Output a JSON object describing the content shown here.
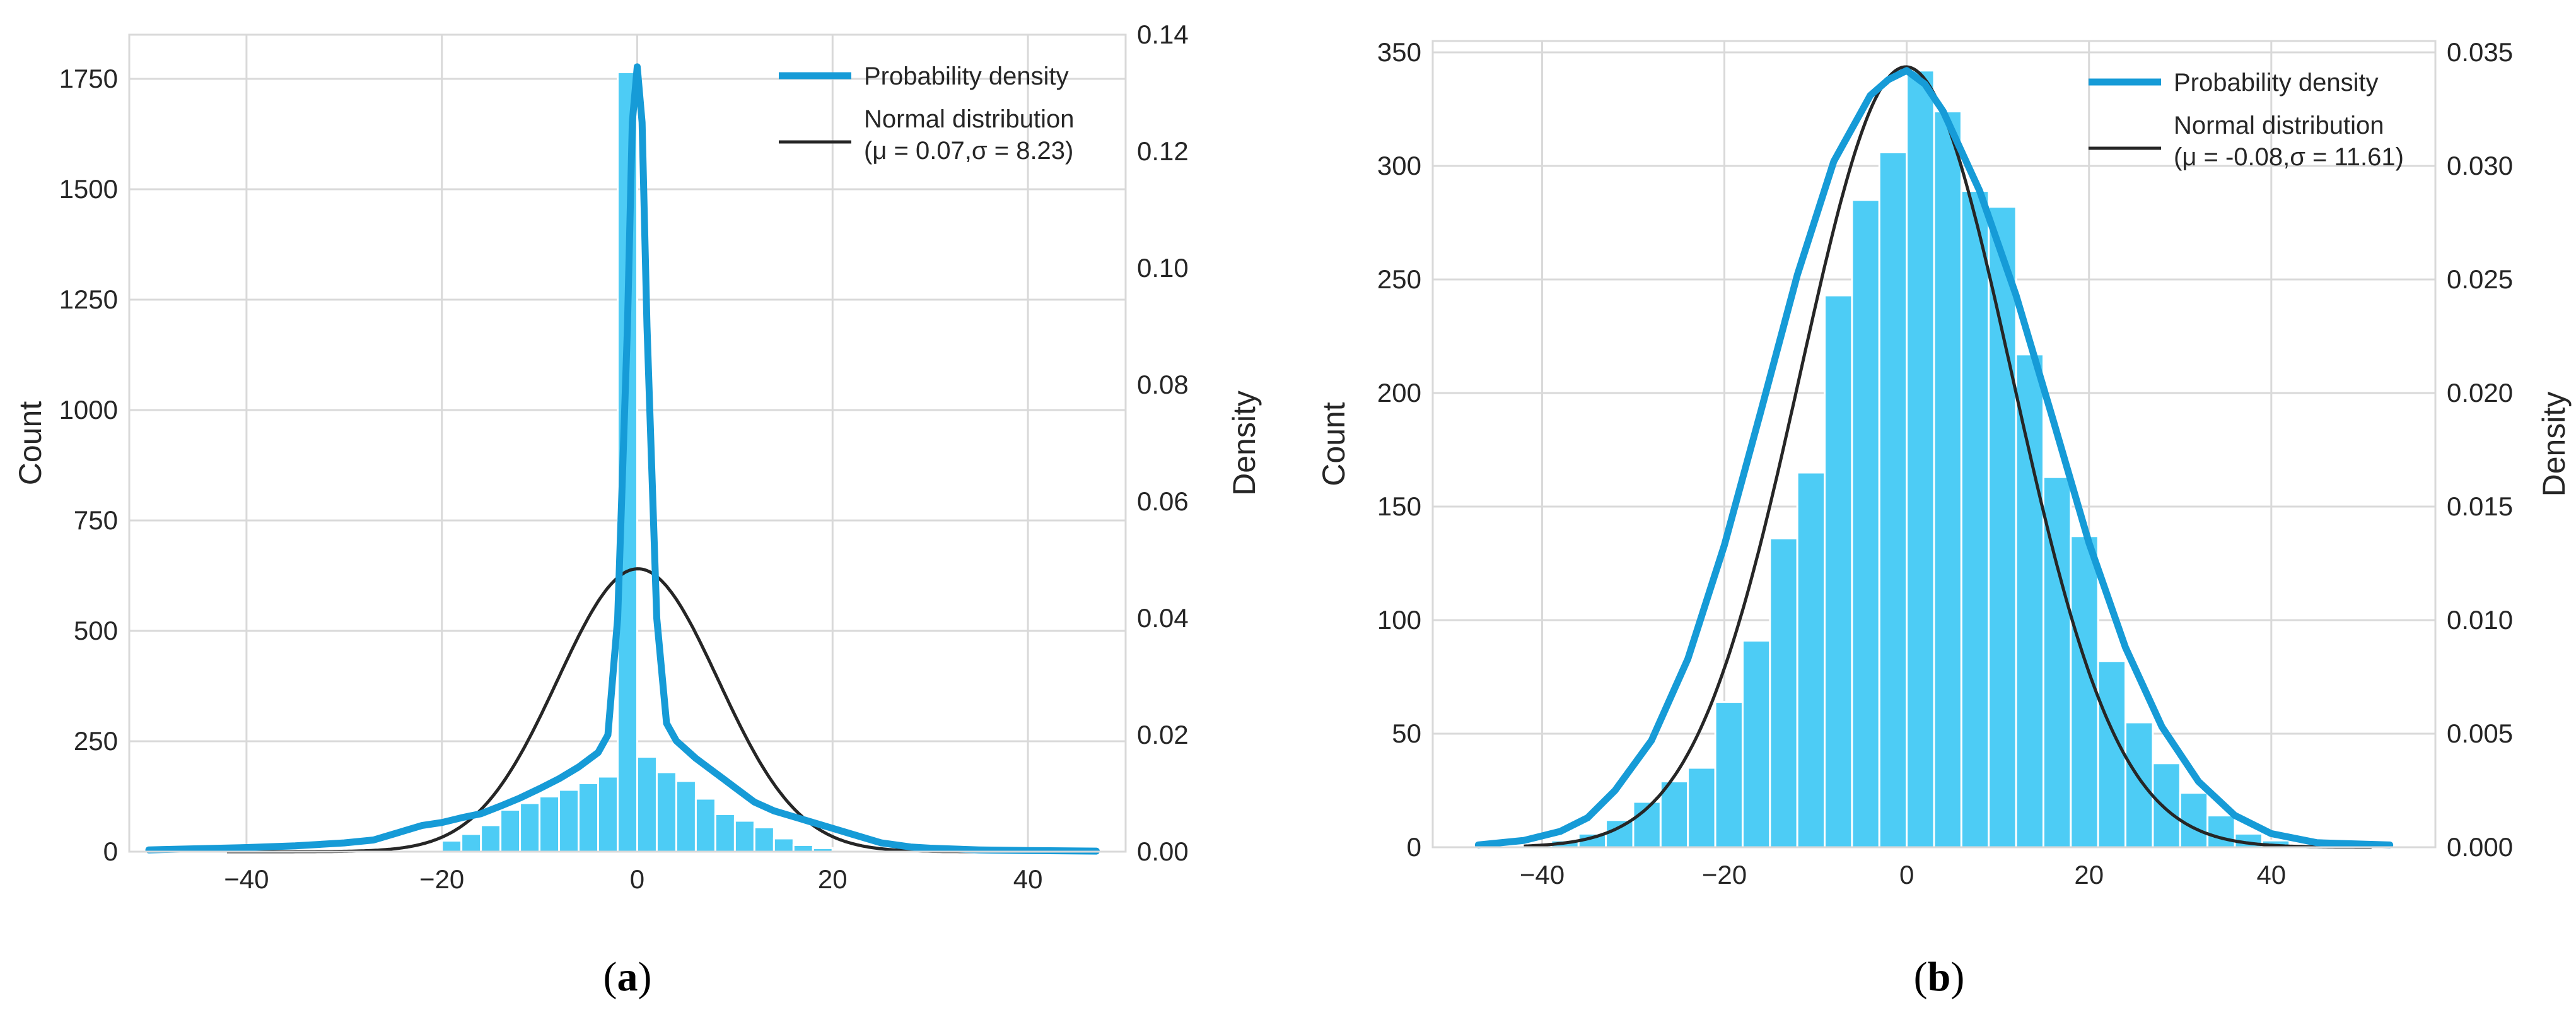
{
  "chart_data": [
    {
      "type": "bar",
      "panel_label": "a",
      "xlabel": "",
      "ylabel_left": "Count",
      "ylabel_right": "Density",
      "xlim": [
        -52,
        50
      ],
      "ylim_count": [
        0,
        1850
      ],
      "ylim_density": [
        0,
        0.14
      ],
      "x_ticks": [
        -40,
        -20,
        0,
        20,
        40
      ],
      "y_count_ticks": [
        0,
        250,
        500,
        750,
        1000,
        1250,
        1500,
        1750
      ],
      "y_density_ticks": [
        0,
        0.02,
        0.04,
        0.06,
        0.08,
        0.1,
        0.12,
        0.14
      ],
      "y_density_tick_labels": [
        "0.00",
        "0.02",
        "0.04",
        "0.06",
        "0.08",
        "0.10",
        "0.12",
        "0.14"
      ],
      "grid": true,
      "legend_position": "top-right",
      "legend": [
        "Probability density",
        "Normal distribution",
        "(μ = 0.07,σ = 8.23)"
      ],
      "histogram": {
        "bin_left": [
          -20,
          -18,
          -16,
          -14,
          -12,
          -10,
          -8,
          -6,
          -4,
          -2,
          0,
          2,
          4,
          6,
          8,
          10,
          12,
          14,
          16,
          18,
          20
        ],
        "bin_width": 2,
        "counts": [
          25,
          40,
          60,
          95,
          110,
          125,
          140,
          155,
          170,
          1765,
          215,
          180,
          160,
          120,
          85,
          70,
          55,
          30,
          15,
          8,
          4
        ]
      },
      "series": [
        {
          "name": "Probability density",
          "x": [
            -50,
            -40,
            -35,
            -30,
            -27,
            -25,
            -22,
            -20,
            -18,
            -16,
            -14,
            -12,
            -10,
            -8,
            -6,
            -4,
            -3,
            -2,
            -1,
            -0.5,
            0,
            0.5,
            1,
            2,
            3,
            4,
            6,
            8,
            10,
            12,
            14,
            16,
            18,
            20,
            22,
            25,
            28,
            30,
            35,
            40,
            47
          ],
          "y": [
            0.0003,
            0.0007,
            0.001,
            0.0015,
            0.002,
            0.003,
            0.0045,
            0.005,
            0.0058,
            0.0065,
            0.0078,
            0.0092,
            0.0108,
            0.0125,
            0.0145,
            0.017,
            0.02,
            0.04,
            0.09,
            0.125,
            0.1345,
            0.125,
            0.09,
            0.04,
            0.022,
            0.019,
            0.016,
            0.0135,
            0.011,
            0.0085,
            0.007,
            0.006,
            0.005,
            0.004,
            0.003,
            0.0015,
            0.0008,
            0.0006,
            0.0003,
            0.0002,
            0.0001
          ]
        },
        {
          "name": "Normal distribution",
          "mu": 0.07,
          "sigma": 8.23
        }
      ]
    },
    {
      "type": "bar",
      "panel_label": "b",
      "xlabel": "",
      "ylabel_left": "Count",
      "ylabel_right": "Density",
      "xlim": [
        -52,
        58
      ],
      "ylim_count": [
        0,
        355
      ],
      "ylim_density": [
        0,
        0.0355
      ],
      "x_ticks": [
        -40,
        -20,
        0,
        20,
        40
      ],
      "y_count_ticks": [
        0,
        50,
        100,
        150,
        200,
        250,
        300,
        350
      ],
      "y_density_ticks": [
        0,
        0.005,
        0.01,
        0.015,
        0.02,
        0.025,
        0.03,
        0.035
      ],
      "y_density_tick_labels": [
        "0.000",
        "0.005",
        "0.010",
        "0.015",
        "0.020",
        "0.025",
        "0.030",
        "0.035"
      ],
      "grid": true,
      "legend_position": "top-right",
      "legend": [
        "Probability density",
        "Normal distribution",
        "(μ = -0.08,σ = 11.61)"
      ],
      "histogram": {
        "bin_left": [
          -42,
          -39,
          -36,
          -33,
          -30,
          -27,
          -24,
          -21,
          -18,
          -15,
          -12,
          -9,
          -6,
          -3,
          0,
          3,
          6,
          9,
          12,
          15,
          18,
          21,
          24,
          27,
          30,
          33,
          36,
          39,
          42
        ],
        "bin_width": 3,
        "counts": [
          1,
          3,
          6,
          12,
          20,
          29,
          35,
          64,
          91,
          136,
          165,
          243,
          285,
          306,
          342,
          324,
          289,
          282,
          217,
          163,
          137,
          82,
          55,
          37,
          24,
          14,
          6,
          3,
          1
        ]
      },
      "series": [
        {
          "name": "Probability density",
          "x": [
            -47,
            -42,
            -38,
            -35,
            -32,
            -28,
            -24,
            -20,
            -16,
            -12,
            -8,
            -4,
            -2,
            0,
            2,
            4,
            8,
            12,
            16,
            20,
            24,
            28,
            32,
            36,
            40,
            45,
            53
          ],
          "y": [
            0.0001,
            0.0003,
            0.0007,
            0.0013,
            0.0025,
            0.0047,
            0.0083,
            0.0133,
            0.0192,
            0.0252,
            0.0302,
            0.0331,
            0.0338,
            0.0342,
            0.0336,
            0.0324,
            0.0289,
            0.0243,
            0.0189,
            0.0134,
            0.0088,
            0.0053,
            0.0029,
            0.0014,
            0.0006,
            0.0002,
            0.0001
          ]
        },
        {
          "name": "Normal distribution",
          "mu": -0.08,
          "sigma": 11.61
        }
      ]
    }
  ]
}
